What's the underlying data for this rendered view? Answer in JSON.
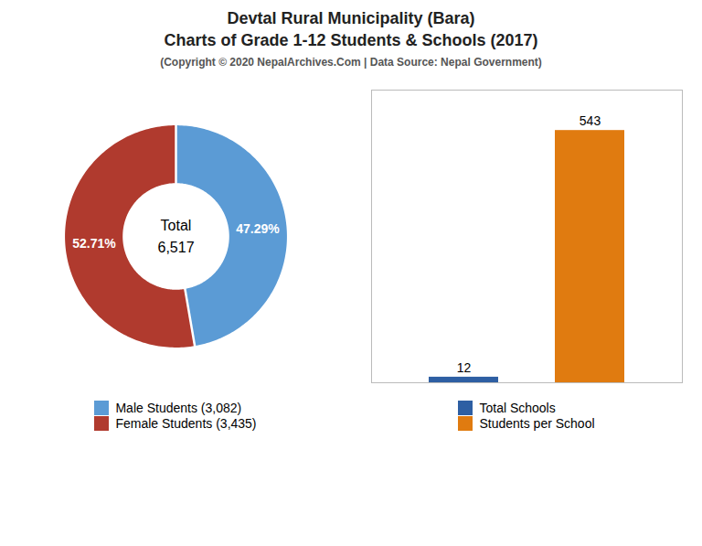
{
  "chart_data": [
    {
      "type": "pie",
      "title": "Devtal Rural Municipality (Bara)\nCharts of Grade 1-12 Students & Schools (2017)",
      "subtitle": "(Copyright © 2020 NepalArchives.Com | Data Source: Nepal Government)",
      "categories": [
        "Male Students (3,082)",
        "Female Students (3,435)"
      ],
      "values": [
        47.29,
        52.71
      ],
      "value_labels": [
        "47.29%",
        "52.71%"
      ],
      "colors": [
        "#5b9bd5",
        "#b03a2e"
      ],
      "data_labels": true,
      "annotations": [
        "Total",
        "6,517"
      ],
      "legend": "bottom"
    },
    {
      "type": "bar",
      "categories": [
        "Total Schools",
        "Students per School"
      ],
      "values": [
        12,
        543
      ],
      "colors": [
        "#2e5fa3",
        "#e07b10"
      ],
      "ylim": [
        0,
        630
      ],
      "tick_labels": false,
      "data_labels": true,
      "legend": "bottom"
    }
  ]
}
